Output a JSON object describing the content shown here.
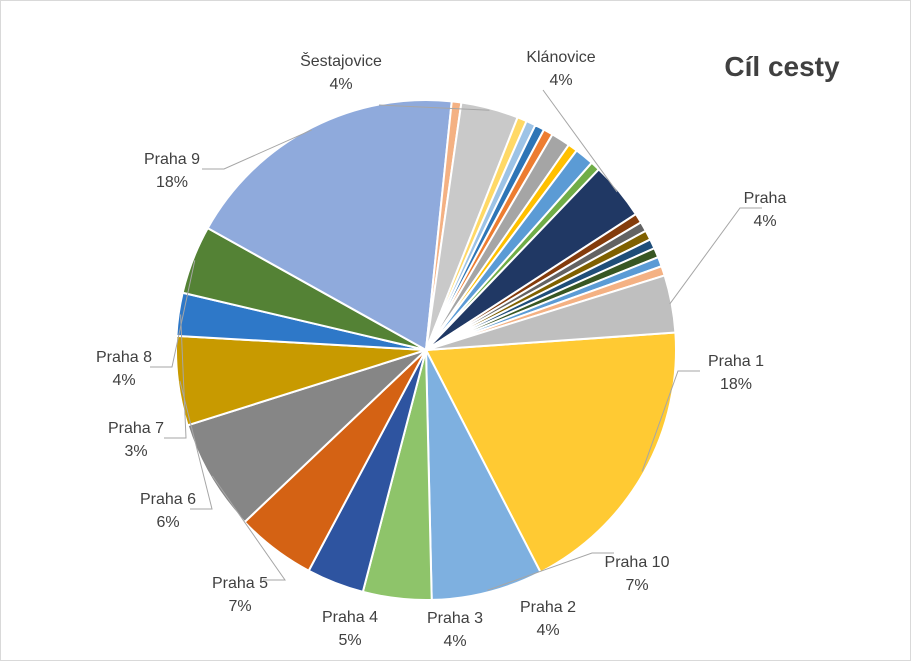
{
  "chart_data": {
    "type": "pie",
    "title": "Cíl cesty",
    "slices": [
      {
        "label": "Praha 1",
        "pct_label": "18%",
        "value": 18.0,
        "color": "#FFCA33"
      },
      {
        "label": "Praha 10",
        "pct_label": "7%",
        "value": 7.0,
        "color": "#7EB0E0"
      },
      {
        "label": "Praha 2",
        "pct_label": "4%",
        "value": 4.3,
        "color": "#8EC46A"
      },
      {
        "label": "Praha 3",
        "pct_label": "4%",
        "value": 3.6,
        "color": "#2E54A0"
      },
      {
        "label": "Praha 4",
        "pct_label": "5%",
        "value": 5.0,
        "color": "#D46214"
      },
      {
        "label": "Praha 5",
        "pct_label": "7%",
        "value": 7.0,
        "color": "#868686"
      },
      {
        "label": "Praha 6",
        "pct_label": "6%",
        "value": 5.6,
        "color": "#C89A00"
      },
      {
        "label": "Praha 7",
        "pct_label": "3%",
        "value": 2.7,
        "color": "#2E78C8"
      },
      {
        "label": "Praha 8",
        "pct_label": "4%",
        "value": 4.3,
        "color": "#548235"
      },
      {
        "label": "Praha 9",
        "pct_label": "18%",
        "value": 18.0,
        "color": "#8FAADC"
      },
      {
        "label": "",
        "pct_label": "",
        "value": 0.6,
        "color": "#F4B183"
      },
      {
        "label": "Šestajovice",
        "pct_label": "4%",
        "value": 3.6,
        "color": "#C9C9C9"
      },
      {
        "label": "",
        "pct_label": "",
        "value": 0.6,
        "color": "#FFD966"
      },
      {
        "label": "",
        "pct_label": "",
        "value": 0.6,
        "color": "#9DC3E6"
      },
      {
        "label": "",
        "pct_label": "",
        "value": 0.6,
        "color": "#2E75B6"
      },
      {
        "label": "",
        "pct_label": "",
        "value": 0.6,
        "color": "#ED7D31"
      },
      {
        "label": "",
        "pct_label": "",
        "value": 1.2,
        "color": "#A5A5A5"
      },
      {
        "label": "",
        "pct_label": "",
        "value": 0.6,
        "color": "#FFC000"
      },
      {
        "label": "",
        "pct_label": "",
        "value": 1.2,
        "color": "#5B9BD5"
      },
      {
        "label": "",
        "pct_label": "",
        "value": 0.6,
        "color": "#70AD47"
      },
      {
        "label": "Klánovice",
        "pct_label": "4%",
        "value": 3.6,
        "color": "#203864"
      },
      {
        "label": "",
        "pct_label": "",
        "value": 0.6,
        "color": "#843C0C"
      },
      {
        "label": "",
        "pct_label": "",
        "value": 0.6,
        "color": "#636363"
      },
      {
        "label": "",
        "pct_label": "",
        "value": 0.6,
        "color": "#7F6000"
      },
      {
        "label": "",
        "pct_label": "",
        "value": 0.6,
        "color": "#1F4E79"
      },
      {
        "label": "",
        "pct_label": "",
        "value": 0.6,
        "color": "#385723"
      },
      {
        "label": "",
        "pct_label": "",
        "value": 0.6,
        "color": "#5B9BD5"
      },
      {
        "label": "",
        "pct_label": "",
        "value": 0.6,
        "color": "#F4B183"
      },
      {
        "label": "Praha",
        "pct_label": "4%",
        "value": 3.6,
        "color": "#BFBFBF"
      }
    ]
  }
}
